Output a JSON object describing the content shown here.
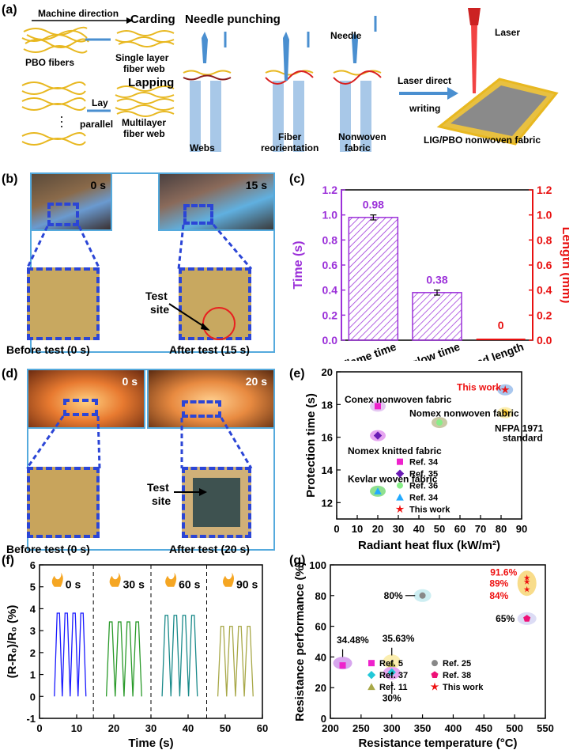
{
  "panel_a": {
    "letter": "(a)",
    "machine_direction": "Machine direction",
    "carding": "Carding",
    "pbo_fibers": "PBO fibers",
    "single_layer_1": "Single layer",
    "single_layer_2": "fiber web",
    "lapping": "Lapping",
    "lay": "Lay",
    "parallel": "parallel",
    "multilayer_1": "Multilayer",
    "multilayer_2": "fiber web",
    "needle_punching": "Needle punching",
    "webs": "Webs",
    "fiber_reorientation_1": "Fiber",
    "fiber_reorientation_2": "reorientation",
    "nonwoven_1": "Nonwoven",
    "nonwoven_2": "fabric",
    "needle": "Needle",
    "laser_direct": "Laser direct",
    "writing": "writing",
    "laser": "Laser",
    "lig_label": "LIG/PBO nonwoven fabric"
  },
  "panel_b": {
    "letter": "(b)",
    "time_0": "0 s",
    "time_15": "15 s",
    "test_site_1": "Test",
    "test_site_2": "site",
    "before": "Before test (0 s)",
    "after": "After test (15 s)"
  },
  "panel_d": {
    "letter": "(d)",
    "time_0": "0 s",
    "time_20": "20 s",
    "test_site_1": "Test",
    "test_site_2": "site",
    "before": "Before test (0 s)",
    "after": "After test (20 s)"
  },
  "panel_f_labels": {
    "letter": "(f)",
    "t0": "0 s",
    "t30": "30 s",
    "t60": "60 s",
    "t90": "90 s"
  },
  "chart_data": [
    {
      "id": "c",
      "type": "bar",
      "letter": "(c)",
      "categories": [
        "Afterflame time",
        "Afterglow time",
        "Damaged length"
      ],
      "series": [
        {
          "name": "Time (s)",
          "axis": "left",
          "values": [
            0.98,
            0.38,
            null
          ],
          "errors": [
            0.02,
            0.02,
            null
          ],
          "color": "#9b30d9"
        },
        {
          "name": "Length (mm)",
          "axis": "right",
          "values": [
            null,
            null,
            0
          ],
          "color": "#e81010"
        }
      ],
      "data_labels": [
        "0.98",
        "0.38",
        "0"
      ],
      "ylabel_left": "Time (s)",
      "ylabel_right": "Length (mm)",
      "ylim": [
        0,
        1.2
      ],
      "yticks": [
        "0.0",
        "0.2",
        "0.4",
        "0.6",
        "0.8",
        "1.0",
        "1.2"
      ]
    },
    {
      "id": "e",
      "type": "scatter",
      "letter": "(e)",
      "xlabel": "Radiant heat flux (kW/m²)",
      "ylabel": "Protection time (s)",
      "xlim": [
        0,
        90
      ],
      "ylim": [
        11,
        20
      ],
      "xticks": [
        "0",
        "10",
        "20",
        "30",
        "40",
        "50",
        "60",
        "70",
        "80",
        "90"
      ],
      "yticks": [
        "12",
        "14",
        "16",
        "18",
        "20"
      ],
      "points": [
        {
          "label": "Conex nonwoven fabric",
          "x": 20,
          "y": 17.9,
          "marker": "square",
          "color": "#ee22cc",
          "halo": "#e4c8f2"
        },
        {
          "label": "Nomex knitted fabric",
          "x": 20,
          "y": 16.1,
          "marker": "diamond",
          "color": "#6a1bb5",
          "halo": "#e6a5f0"
        },
        {
          "label": "Nomex nonwoven fabric",
          "x": 50,
          "y": 16.9,
          "marker": "circle",
          "color": "#88ee88",
          "halo": "#c9c9a5"
        },
        {
          "label": "Kevlar woven fabric",
          "x": 20,
          "y": 12.7,
          "marker": "triangle",
          "color": "#22aaff",
          "halo": "#8fe08f"
        },
        {
          "label": "This work",
          "x": 82,
          "y": 18.9,
          "marker": "star",
          "color": "#ee1111",
          "halo": "#a9c7ee"
        },
        {
          "label": "NFPA 1971 standard",
          "x": 82,
          "y": 17.5,
          "marker": "pentagon",
          "color": "#ffcc33",
          "halo": "#fbeeb0"
        }
      ],
      "legend": [
        {
          "label": "Ref. 34",
          "marker": "square",
          "color": "#ee22cc"
        },
        {
          "label": "Ref. 35",
          "marker": "diamond",
          "color": "#6a1bb5"
        },
        {
          "label": "Ref. 36",
          "marker": "circle",
          "color": "#88ee88"
        },
        {
          "label": "Ref. 34",
          "marker": "triangle",
          "color": "#22aaff"
        },
        {
          "label": "This work",
          "marker": "star",
          "color": "#ee1111"
        }
      ],
      "nfpa_1": "NFPA 1971",
      "nfpa_2": "standard"
    },
    {
      "id": "f",
      "type": "line",
      "letter": "(f)",
      "xlabel": "Time (s)",
      "ylabel": "(R-R₀)/R₀ (%)",
      "xlim": [
        0,
        60
      ],
      "ylim": [
        -1,
        6
      ],
      "xticks": [
        "0",
        "10",
        "20",
        "30",
        "40",
        "50",
        "60"
      ],
      "yticks": [
        "-1",
        "0",
        "1",
        "2",
        "3",
        "4",
        "5",
        "6"
      ],
      "dividers_x": [
        14.5,
        30,
        45
      ],
      "series": [
        {
          "name": "0 s",
          "color": "#1a1aff",
          "x_start": 4,
          "x_end": 12.5,
          "peak": 3.8,
          "cycles": 4
        },
        {
          "name": "30 s",
          "color": "#2a9a2a",
          "x_start": 18,
          "x_end": 27.5,
          "peak": 3.4,
          "cycles": 4
        },
        {
          "name": "60 s",
          "color": "#1a8a8a",
          "x_start": 33,
          "x_end": 42.5,
          "peak": 3.7,
          "cycles": 4
        },
        {
          "name": "90 s",
          "color": "#a8a848",
          "x_start": 48,
          "x_end": 57.5,
          "peak": 3.2,
          "cycles": 4
        }
      ]
    },
    {
      "id": "g",
      "type": "scatter",
      "letter": "(g)",
      "xlabel": "Resistance temperature (°C)",
      "ylabel": "Resistance performance (%)",
      "xlim": [
        200,
        550
      ],
      "ylim": [
        0,
        100
      ],
      "xticks": [
        "200",
        "250",
        "300",
        "350",
        "400",
        "450",
        "500",
        "550"
      ],
      "yticks": [
        "0",
        "20",
        "40",
        "60",
        "80",
        "100"
      ],
      "points": [
        {
          "ref": "Ref. 5",
          "x": 220,
          "y": 34.48,
          "marker": "square",
          "color": "#ee22cc",
          "halo": "#d7a6ee",
          "label": "34.48%"
        },
        {
          "ref": "Ref. 11",
          "x": 300,
          "y": 35.63,
          "marker": "triangle",
          "color": "#a8a848",
          "halo": "#fbeeb0",
          "label": "35.63%"
        },
        {
          "ref": "Ref. 37",
          "x": 300,
          "y": 30,
          "marker": "diamond",
          "color": "#22c8d8",
          "halo": "#e6a5f0",
          "label": "30%"
        },
        {
          "ref": "Ref. 25",
          "x": 350,
          "y": 80,
          "marker": "circle",
          "color": "#888888",
          "halo": "#cdeef2",
          "label": "80%"
        },
        {
          "ref": "Ref. 38",
          "x": 520,
          "y": 65,
          "marker": "pentagon",
          "color": "#ee1177",
          "halo": "#dcdcf5",
          "label": "65%"
        },
        {
          "ref": "This work",
          "x": 520,
          "y": 91.6,
          "marker": "star",
          "color": "#ee1111",
          "halo": "#f8dc8a",
          "label": "91.6%"
        },
        {
          "ref": "This work",
          "x": 520,
          "y": 89,
          "marker": "star",
          "color": "#ee1111",
          "halo": "none",
          "label": "89%"
        },
        {
          "ref": "This work",
          "x": 520,
          "y": 84,
          "marker": "star",
          "color": "#ee1111",
          "halo": "none",
          "label": "84%"
        }
      ],
      "legend": [
        {
          "label": "Ref. 5",
          "marker": "square",
          "color": "#ee22cc"
        },
        {
          "label": "Ref. 25",
          "marker": "circle",
          "color": "#888888"
        },
        {
          "label": "Ref. 37",
          "marker": "diamond",
          "color": "#22c8d8"
        },
        {
          "label": "Ref. 38",
          "marker": "pentagon",
          "color": "#ee1177"
        },
        {
          "label": "Ref. 11",
          "marker": "triangle",
          "color": "#a8a848"
        },
        {
          "label": "This work",
          "marker": "star",
          "color": "#ee1111"
        }
      ]
    }
  ]
}
